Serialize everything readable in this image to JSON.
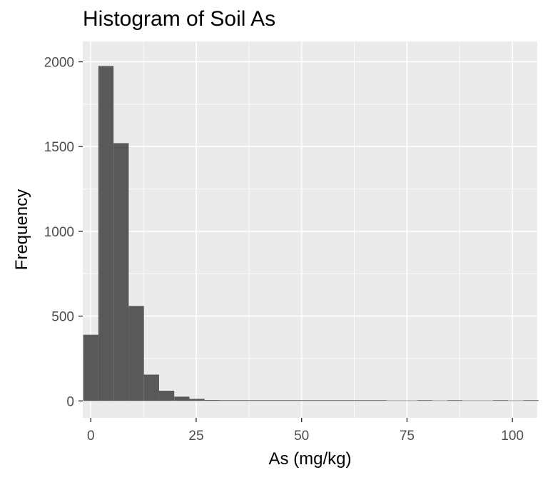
{
  "chart_data": {
    "type": "bar",
    "title": "Histogram of Soil As",
    "xlabel": "As (mg/kg)",
    "ylabel": "Frequency",
    "xlim": [
      -1.9,
      105.9
    ],
    "ylim": [
      -100,
      2120
    ],
    "x_ticks": [
      0,
      25,
      50,
      75,
      100
    ],
    "y_ticks": [
      0,
      500,
      1000,
      1500,
      2000
    ],
    "bin_width": 3.6,
    "bin_starts": [
      -1.8,
      1.8,
      5.4,
      9.0,
      12.6,
      16.2,
      19.8,
      23.4,
      27.0,
      30.6,
      34.2,
      37.8,
      41.4,
      45.0,
      48.6,
      52.2,
      55.8,
      59.4,
      63.0,
      66.6,
      70.2,
      73.8,
      77.4,
      81.0,
      84.6,
      88.2,
      91.8,
      95.4,
      99.0,
      102.6
    ],
    "values": [
      390,
      1975,
      1520,
      560,
      155,
      60,
      25,
      12,
      5,
      3,
      4,
      2,
      1,
      1,
      1,
      1,
      1,
      1,
      1,
      1,
      0,
      0,
      1,
      0,
      1,
      0,
      0,
      1,
      0,
      1
    ],
    "grid": true,
    "colors": {
      "panel": "#ebebeb",
      "grid_major": "#ffffff",
      "bar": "#595959",
      "tick_text": "#4d4d4d"
    }
  }
}
